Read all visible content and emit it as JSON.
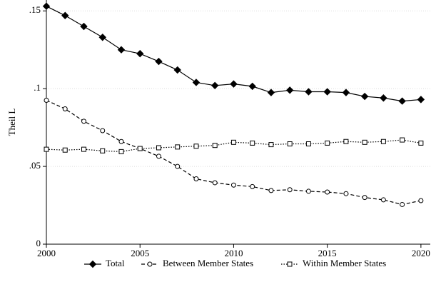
{
  "chart_data": {
    "type": "line",
    "y_label": "Theil L",
    "x": [
      2000,
      2001,
      2002,
      2003,
      2004,
      2005,
      2006,
      2007,
      2008,
      2009,
      2010,
      2011,
      2012,
      2013,
      2014,
      2015,
      2016,
      2017,
      2018,
      2019,
      2020
    ],
    "series": [
      {
        "name": "Total",
        "color": "#000000",
        "marker": "diamond",
        "dash": "solid",
        "values": [
          0.153,
          0.147,
          0.14,
          0.133,
          0.125,
          0.1225,
          0.1175,
          0.112,
          0.104,
          0.102,
          0.103,
          0.1015,
          0.0975,
          0.099,
          0.098,
          0.098,
          0.0975,
          0.095,
          0.094,
          0.092,
          0.093
        ]
      },
      {
        "name": "Between Member States",
        "color": "#000000",
        "marker": "circle",
        "dash": "dashed",
        "values": [
          0.0925,
          0.087,
          0.079,
          0.073,
          0.066,
          0.0615,
          0.0565,
          0.05,
          0.042,
          0.0395,
          0.038,
          0.037,
          0.0345,
          0.035,
          0.034,
          0.0335,
          0.0325,
          0.03,
          0.0285,
          0.0255,
          0.028
        ]
      },
      {
        "name": "Within Member States",
        "color": "#000000",
        "marker": "square",
        "dash": "dotted",
        "values": [
          0.061,
          0.0605,
          0.061,
          0.06,
          0.0595,
          0.0615,
          0.062,
          0.0625,
          0.063,
          0.0635,
          0.0655,
          0.065,
          0.064,
          0.0645,
          0.0645,
          0.065,
          0.066,
          0.0655,
          0.066,
          0.067,
          0.065
        ]
      }
    ],
    "xlim": [
      2000,
      2020.5
    ],
    "xticks": [
      2000,
      2005,
      2010,
      2015,
      2020
    ],
    "ylim": [
      0,
      0.157
    ],
    "yticks": [
      0,
      {
        "value": 0.05,
        "label": ".05"
      },
      {
        "value": 0.1,
        "label": ".1"
      },
      {
        "value": 0.15,
        "label": ".15"
      }
    ],
    "grid": true,
    "legend": "bottom"
  }
}
